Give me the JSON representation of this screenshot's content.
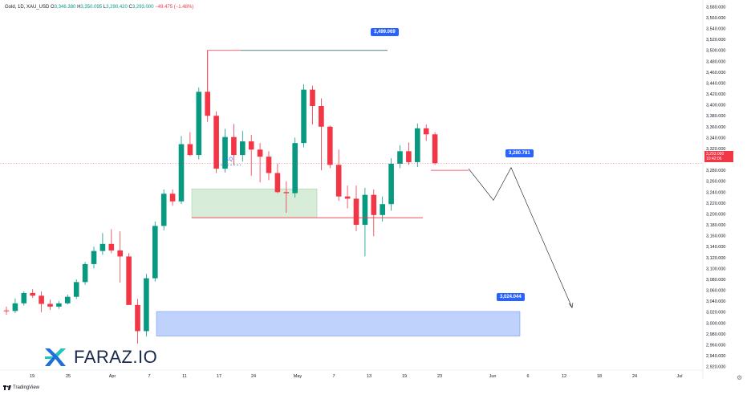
{
  "header": {
    "symbol": "Gold, 1D, XAU_USD",
    "open_label": "O",
    "open": "3,346.380",
    "high_label": "H",
    "high": "3,350.095",
    "low_label": "L",
    "low": "3,290.420",
    "close_label": "C",
    "close": "3,293.000",
    "change": "−49.475 (−1.48%)"
  },
  "current_price": {
    "value": "3,293.000",
    "countdown": "10:42:06"
  },
  "brand": {
    "name": "FARAZ.IO"
  },
  "footer": {
    "label": "TradingView"
  },
  "annotations": {
    "target_high": "3,499.069",
    "target_mid": "3,280.781",
    "target_low": "3,024.044",
    "lq_label": "LQ"
  },
  "colors": {
    "up": "#089981",
    "down": "#f23645",
    "accent": "#2962ff",
    "demand_zone": "#c8e6c9",
    "blue_zone": "#a9c4fb"
  },
  "chart_data": {
    "type": "candlestick",
    "y_axis_ticks": [
      3580,
      3560,
      3540,
      3520,
      3500,
      3480,
      3460,
      3440,
      3420,
      3400,
      3380,
      3360,
      3340,
      3320,
      3300,
      3280,
      3260,
      3240,
      3220,
      3200,
      3180,
      3160,
      3140,
      3120,
      3100,
      3080,
      3060,
      3040,
      3020,
      3000,
      2980,
      2960,
      2940,
      2920
    ],
    "ylim": [
      2915,
      3585
    ],
    "x_tick_labels": [
      "19",
      "25",
      "Apr",
      "7",
      "11",
      "17",
      "24",
      "May",
      "7",
      "13",
      "19",
      "23",
      "Jun",
      "6",
      "12",
      "18",
      "24",
      "Jul"
    ],
    "candles": [
      {
        "o": 3023,
        "h": 3030,
        "l": 3015,
        "c": 3022
      },
      {
        "o": 3022,
        "h": 3045,
        "l": 3018,
        "c": 3036
      },
      {
        "o": 3036,
        "h": 3058,
        "l": 3032,
        "c": 3055
      },
      {
        "o": 3055,
        "h": 3062,
        "l": 3046,
        "c": 3050
      },
      {
        "o": 3050,
        "h": 3058,
        "l": 3020,
        "c": 3035
      },
      {
        "o": 3035,
        "h": 3043,
        "l": 3024,
        "c": 3030
      },
      {
        "o": 3030,
        "h": 3040,
        "l": 3026,
        "c": 3036
      },
      {
        "o": 3036,
        "h": 3052,
        "l": 3034,
        "c": 3048
      },
      {
        "o": 3048,
        "h": 3080,
        "l": 3044,
        "c": 3075
      },
      {
        "o": 3075,
        "h": 3112,
        "l": 3070,
        "c": 3108
      },
      {
        "o": 3108,
        "h": 3140,
        "l": 3100,
        "c": 3132
      },
      {
        "o": 3132,
        "h": 3165,
        "l": 3125,
        "c": 3145
      },
      {
        "o": 3145,
        "h": 3172,
        "l": 3128,
        "c": 3133
      },
      {
        "o": 3133,
        "h": 3168,
        "l": 3074,
        "c": 3122
      },
      {
        "o": 3122,
        "h": 3128,
        "l": 3038,
        "c": 3033
      },
      {
        "o": 3033,
        "h": 3044,
        "l": 2962,
        "c": 2985
      },
      {
        "o": 2985,
        "h": 3090,
        "l": 2975,
        "c": 3082
      },
      {
        "o": 3082,
        "h": 3186,
        "l": 3076,
        "c": 3178
      },
      {
        "o": 3178,
        "h": 3245,
        "l": 3170,
        "c": 3237
      },
      {
        "o": 3237,
        "h": 3245,
        "l": 3215,
        "c": 3223
      },
      {
        "o": 3223,
        "h": 3343,
        "l": 3218,
        "c": 3328
      },
      {
        "o": 3328,
        "h": 3350,
        "l": 3306,
        "c": 3308
      },
      {
        "o": 3308,
        "h": 3432,
        "l": 3300,
        "c": 3424
      },
      {
        "o": 3424,
        "h": 3500,
        "l": 3369,
        "c": 3380
      },
      {
        "o": 3380,
        "h": 3388,
        "l": 3275,
        "c": 3283
      },
      {
        "o": 3283,
        "h": 3356,
        "l": 3276,
        "c": 3341
      },
      {
        "o": 3341,
        "h": 3365,
        "l": 3290,
        "c": 3308
      },
      {
        "o": 3308,
        "h": 3352,
        "l": 3296,
        "c": 3333
      },
      {
        "o": 3333,
        "h": 3345,
        "l": 3270,
        "c": 3318
      },
      {
        "o": 3318,
        "h": 3330,
        "l": 3258,
        "c": 3305
      },
      {
        "o": 3305,
        "h": 3315,
        "l": 3262,
        "c": 3275
      },
      {
        "o": 3275,
        "h": 3292,
        "l": 3238,
        "c": 3240
      },
      {
        "o": 3240,
        "h": 3260,
        "l": 3202,
        "c": 3238
      },
      {
        "o": 3238,
        "h": 3340,
        "l": 3230,
        "c": 3330
      },
      {
        "o": 3330,
        "h": 3438,
        "l": 3322,
        "c": 3428
      },
      {
        "o": 3428,
        "h": 3435,
        "l": 3364,
        "c": 3398
      },
      {
        "o": 3398,
        "h": 3412,
        "l": 3280,
        "c": 3360
      },
      {
        "o": 3360,
        "h": 3362,
        "l": 3284,
        "c": 3290
      },
      {
        "o": 3290,
        "h": 3318,
        "l": 3224,
        "c": 3232
      },
      {
        "o": 3232,
        "h": 3252,
        "l": 3210,
        "c": 3228
      },
      {
        "o": 3228,
        "h": 3252,
        "l": 3168,
        "c": 3180
      },
      {
        "o": 3180,
        "h": 3248,
        "l": 3122,
        "c": 3235
      },
      {
        "o": 3235,
        "h": 3245,
        "l": 3159,
        "c": 3198
      },
      {
        "o": 3198,
        "h": 3232,
        "l": 3186,
        "c": 3218
      },
      {
        "o": 3218,
        "h": 3302,
        "l": 3206,
        "c": 3292
      },
      {
        "o": 3292,
        "h": 3326,
        "l": 3284,
        "c": 3315
      },
      {
        "o": 3315,
        "h": 3331,
        "l": 3290,
        "c": 3295
      },
      {
        "o": 3295,
        "h": 3366,
        "l": 3286,
        "c": 3357
      },
      {
        "o": 3357,
        "h": 3364,
        "l": 3334,
        "c": 3346
      },
      {
        "o": 3346,
        "h": 3350,
        "l": 3290,
        "c": 3293
      }
    ]
  }
}
